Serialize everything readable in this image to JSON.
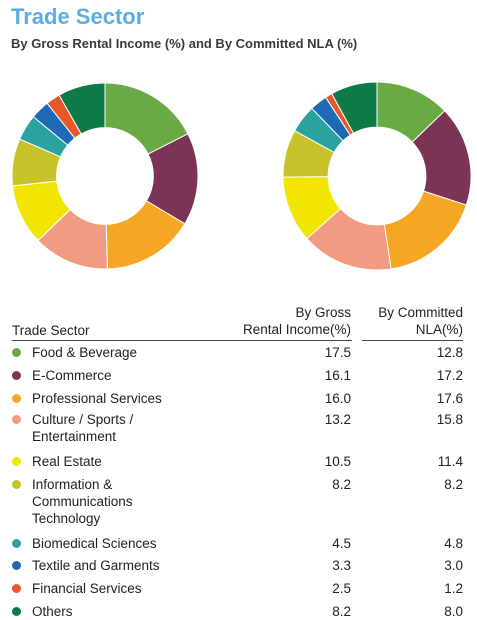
{
  "title": "Trade Sector",
  "subtitle": "By Gross Rental Income (%) and By Committed NLA (%)",
  "table": {
    "col_sector": "Trade Sector",
    "col_gri_line1": "By Gross",
    "col_gri_line2": "Rental Income(%)",
    "col_nla_line1": "By Committed",
    "col_nla_line2": "NLA(%)",
    "rows": [
      {
        "lines": [
          "Food & Beverage"
        ],
        "gri": "17.5",
        "nla": "12.8",
        "color": "#6aaa45"
      },
      {
        "lines": [
          "E-Commerce"
        ],
        "gri": "16.1",
        "nla": "17.2",
        "color": "#7b3454"
      },
      {
        "lines": [
          "Professional Services"
        ],
        "gri": "16.0",
        "nla": "17.6",
        "color": "#f5a623"
      },
      {
        "lines": [
          "Culture / Sports /",
          "Entertainment"
        ],
        "gri": "13.2",
        "nla": "15.8",
        "color": "#f39a82"
      },
      {
        "lines": [
          "Real Estate"
        ],
        "gri": "10.5",
        "nla": "11.4",
        "color": "#f2e600"
      },
      {
        "lines": [
          "Information &",
          "Communications",
          "Technology"
        ],
        "gri": "8.2",
        "nla": "8.2",
        "color": "#c8c22a"
      },
      {
        "lines": [
          "Biomedical Sciences"
        ],
        "gri": "4.5",
        "nla": "4.8",
        "color": "#2aa3a0"
      },
      {
        "lines": [
          "Textile and Garments"
        ],
        "gri": "3.3",
        "nla": "3.0",
        "color": "#1f6ab5"
      },
      {
        "lines": [
          "Financial Services"
        ],
        "gri": "2.5",
        "nla": "1.2",
        "color": "#e8562a"
      },
      {
        "lines": [
          "Others"
        ],
        "gri": "8.2",
        "nla": "8.0",
        "color": "#0e7a46"
      }
    ]
  },
  "chart_data": [
    {
      "type": "pie",
      "donut": true,
      "categories": [
        "Food & Beverage",
        "E-Commerce",
        "Professional Services",
        "Culture / Sports / Entertainment",
        "Real Estate",
        "Information & Communications Technology",
        "Biomedical Sciences",
        "Textile and Garments",
        "Financial Services",
        "Others"
      ],
      "values": [
        17.5,
        16.1,
        16.0,
        13.2,
        10.5,
        8.2,
        4.5,
        3.3,
        2.5,
        8.2
      ],
      "colors": [
        "#6aaa45",
        "#7b3454",
        "#f5a623",
        "#f39a82",
        "#f2e600",
        "#c8c22a",
        "#2aa3a0",
        "#1f6ab5",
        "#e8562a",
        "#0e7a46"
      ],
      "start": "top",
      "direction": "clockwise"
    },
    {
      "type": "pie",
      "donut": true,
      "categories": [
        "Food & Beverage",
        "E-Commerce",
        "Professional Services",
        "Culture / Sports / Entertainment",
        "Real Estate",
        "Information & Communications Technology",
        "Biomedical Sciences",
        "Textile and Garments",
        "Financial Services",
        "Others"
      ],
      "values": [
        12.8,
        17.2,
        17.6,
        15.8,
        11.4,
        8.2,
        4.8,
        3.0,
        1.2,
        8.0
      ],
      "colors": [
        "#6aaa45",
        "#7b3454",
        "#f5a623",
        "#f39a82",
        "#f2e600",
        "#c8c22a",
        "#2aa3a0",
        "#1f6ab5",
        "#e8562a",
        "#0e7a46"
      ],
      "start": "top",
      "direction": "clockwise"
    }
  ]
}
